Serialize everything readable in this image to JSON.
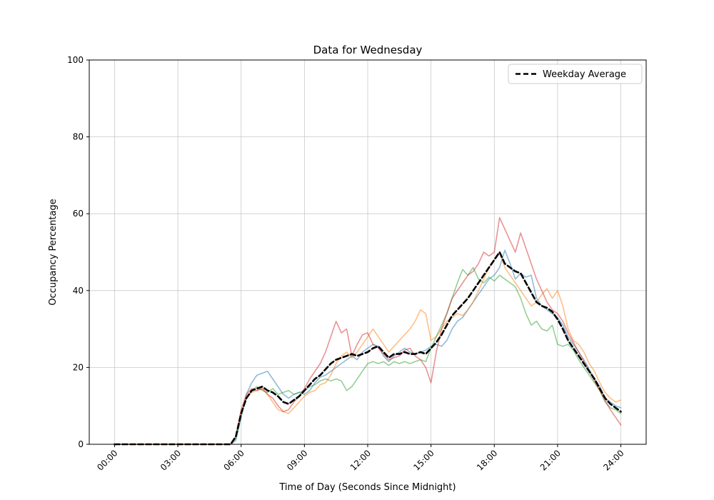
{
  "figure": {
    "background": "#ffffff"
  },
  "chart_data": {
    "type": "line",
    "title": "Data for Wednesday",
    "xlabel": "Time of Day (Seconds Since Midnight)",
    "ylabel": "Occupancy Percentage",
    "grid": true,
    "ylim": [
      0,
      100
    ],
    "xlim_hours": [
      -1.2,
      25.2
    ],
    "y_ticks": [
      0,
      20,
      40,
      60,
      80,
      100
    ],
    "x_ticks": [
      {
        "hour": 0,
        "label": "00:00"
      },
      {
        "hour": 3,
        "label": "03:00"
      },
      {
        "hour": 6,
        "label": "06:00"
      },
      {
        "hour": 9,
        "label": "09:00"
      },
      {
        "hour": 12,
        "label": "12:00"
      },
      {
        "hour": 15,
        "label": "15:00"
      },
      {
        "hour": 18,
        "label": "18:00"
      },
      {
        "hour": 21,
        "label": "21:00"
      },
      {
        "hour": 24,
        "label": "24:00"
      }
    ],
    "x_start_hour": 0,
    "x_step_hours": 0.25,
    "legend": {
      "position": "upper right",
      "entries": [
        {
          "label": "Weekday Average",
          "color": "#000000",
          "dash": "7,4"
        }
      ]
    },
    "series": [
      {
        "name": "series-1",
        "color": "#1f77b4",
        "opacity": 0.5,
        "width": 1.6,
        "dash": "none",
        "values": [
          0,
          0,
          0,
          0,
          0,
          0,
          0,
          0,
          0,
          0,
          0,
          0,
          0,
          0,
          0,
          0,
          0,
          0,
          0,
          0,
          0,
          0,
          0,
          1,
          7,
          13,
          16,
          18,
          18.5,
          19,
          17,
          15,
          13,
          12,
          13,
          13.5,
          13,
          14,
          16,
          17.5,
          18,
          19,
          20,
          21,
          22,
          23,
          22,
          24,
          25,
          26,
          25.5,
          23,
          21.5,
          23,
          24,
          25,
          24,
          23.5,
          24,
          24.5,
          25.5,
          26,
          25.5,
          27,
          30,
          32,
          33,
          35,
          37,
          39,
          41,
          43,
          44,
          46,
          50.5,
          47,
          43,
          44.5,
          43.5,
          44,
          38,
          36,
          35,
          34,
          33,
          31,
          28,
          26,
          24,
          22,
          19.5,
          17,
          15,
          12,
          11,
          10,
          9.5
        ]
      },
      {
        "name": "series-2",
        "color": "#ff7f0e",
        "opacity": 0.5,
        "width": 1.6,
        "dash": "none",
        "values": [
          0,
          0,
          0,
          0,
          0,
          0,
          0,
          0,
          0,
          0,
          0,
          0,
          0,
          0,
          0,
          0,
          0,
          0,
          0,
          0,
          0,
          0,
          0,
          2,
          8,
          12,
          13.5,
          14,
          14.5,
          13,
          11,
          9,
          8.5,
          8,
          9.5,
          11,
          12.5,
          13.5,
          14,
          15.5,
          16,
          18,
          21,
          23,
          24,
          22.5,
          24,
          26,
          28,
          30,
          28,
          26,
          24,
          25.5,
          27,
          28.5,
          30,
          32,
          35,
          34,
          27,
          28,
          30,
          32,
          33,
          34,
          33.5,
          35,
          37,
          40,
          43,
          46,
          48,
          50,
          46,
          44,
          42,
          40,
          38,
          36,
          37,
          39,
          40.5,
          38,
          40,
          36,
          30,
          27,
          26,
          24,
          21,
          19,
          16,
          13.5,
          12,
          11,
          11.5
        ]
      },
      {
        "name": "series-3",
        "color": "#2ca02c",
        "opacity": 0.5,
        "width": 1.6,
        "dash": "none",
        "values": [
          0,
          0,
          0,
          0,
          0,
          0,
          0,
          0,
          0,
          0,
          0,
          0,
          0,
          0,
          0,
          0,
          0,
          0,
          0,
          0,
          0,
          0,
          0,
          1.5,
          7.5,
          12,
          14,
          15,
          14,
          13.5,
          14.5,
          13,
          13.5,
          14,
          13,
          13.5,
          14,
          15,
          15.5,
          16.5,
          17,
          16.5,
          17,
          16.5,
          14,
          15,
          17,
          19,
          21,
          21.5,
          21,
          21.5,
          20.5,
          21.5,
          21,
          21.5,
          21,
          21.5,
          22,
          21.5,
          25,
          28,
          31,
          34,
          38,
          42,
          45.5,
          44,
          46,
          43,
          42,
          43.5,
          42.5,
          44,
          43,
          42,
          41,
          38,
          34,
          31,
          32,
          30,
          29.5,
          31,
          26,
          25.5,
          26,
          24.5,
          22,
          20,
          18,
          16,
          14,
          11,
          9.5,
          9,
          8
        ]
      },
      {
        "name": "series-4",
        "color": "#d62728",
        "opacity": 0.5,
        "width": 1.6,
        "dash": "none",
        "values": [
          0,
          0,
          0,
          0,
          0,
          0,
          0,
          0,
          0,
          0,
          0,
          0,
          0,
          0,
          0,
          0,
          0,
          0,
          0,
          0,
          0,
          0,
          0,
          2,
          9,
          13,
          14.5,
          14,
          14.5,
          13,
          12,
          10,
          8.5,
          9,
          11,
          12.5,
          14.5,
          17,
          19,
          21,
          24,
          28,
          32,
          29,
          30,
          23,
          26,
          28.5,
          29,
          26,
          25,
          23.5,
          22,
          22.5,
          23,
          24.5,
          25,
          23,
          22,
          20,
          16,
          24,
          30,
          34,
          38,
          40,
          42,
          44,
          45,
          47,
          50,
          49,
          50,
          59,
          56,
          53,
          50,
          55,
          51,
          47,
          43,
          40,
          37,
          35,
          34,
          32,
          29,
          26.5,
          24,
          21.5,
          19,
          16.5,
          14,
          11.5,
          9,
          7,
          5
        ]
      },
      {
        "name": "weekday-average",
        "color": "#000000",
        "opacity": 1,
        "width": 2.6,
        "dash": "7,4",
        "values": [
          0,
          0,
          0,
          0,
          0,
          0,
          0,
          0,
          0,
          0,
          0,
          0,
          0,
          0,
          0,
          0,
          0,
          0,
          0,
          0,
          0,
          0,
          0,
          2,
          8,
          12,
          14,
          14.5,
          15,
          14,
          13.5,
          12.5,
          11,
          10.5,
          11.5,
          12.5,
          14,
          15.5,
          17,
          18,
          19.5,
          21,
          22,
          22.5,
          23,
          23.5,
          23,
          23.5,
          24,
          25,
          25.5,
          24,
          22.5,
          23.5,
          23.5,
          24,
          23.5,
          23.5,
          24,
          23.5,
          25,
          26.5,
          28.5,
          31,
          33.5,
          35,
          36.5,
          38,
          40,
          42,
          44,
          46,
          48,
          50,
          47,
          46,
          45,
          44.5,
          42,
          39.5,
          37,
          36,
          35.5,
          34.5,
          32.5,
          30,
          27,
          25,
          23,
          21,
          19,
          17,
          14.5,
          12,
          10.5,
          9.5,
          8.5
        ]
      }
    ]
  }
}
